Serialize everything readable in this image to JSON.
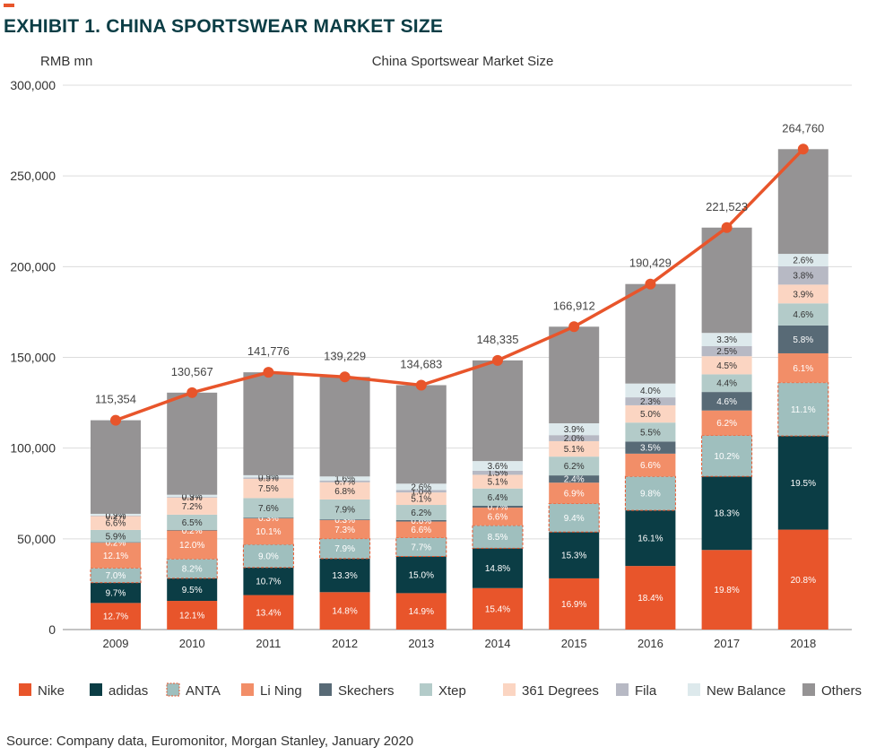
{
  "header": {
    "title": "EXHIBIT 1. CHINA SPORTSWEAR MARKET SIZE",
    "source": "Source: Company data, Euromonitor, Morgan Stanley, January 2020"
  },
  "chart_data": {
    "type": "bar",
    "stacked": true,
    "title": "China Sportswear Market Size",
    "ylabel": "RMB mn",
    "xlabel": "",
    "ylim": [
      0,
      300000
    ],
    "yticks": [
      0,
      50000,
      100000,
      150000,
      200000,
      250000,
      300000
    ],
    "ytick_labels": [
      "0",
      "50,000",
      "100,000",
      "150,000",
      "200,000",
      "250,000",
      "300,000"
    ],
    "grid": true,
    "legend_position": "bottom",
    "categories": [
      "2009",
      "2010",
      "2011",
      "2012",
      "2013",
      "2014",
      "2015",
      "2016",
      "2017",
      "2018"
    ],
    "totals": [
      115354,
      130567,
      141776,
      139229,
      134683,
      148335,
      166912,
      190429,
      221523,
      264760
    ],
    "total_labels": [
      "115,354",
      "130,567",
      "141,776",
      "139,229",
      "134,683",
      "148,335",
      "166,912",
      "190,429",
      "221,523",
      "264,760"
    ],
    "line_series": {
      "values": [
        115354,
        130567,
        141776,
        139229,
        134683,
        148335,
        166912,
        190429,
        221523,
        264760
      ],
      "color": "#e8552b"
    },
    "series": [
      {
        "name": "Nike",
        "color": "#e8552b",
        "text_color": "#ffffff",
        "shares": [
          12.7,
          12.1,
          13.4,
          14.8,
          14.9,
          15.4,
          16.9,
          18.4,
          19.8,
          20.8
        ],
        "labels": [
          "12.7%",
          "12.1%",
          "13.4%",
          "14.8%",
          "14.9%",
          "15.4%",
          "16.9%",
          "18.4%",
          "19.8%",
          "20.8%"
        ]
      },
      {
        "name": "adidas",
        "color": "#0b3d45",
        "text_color": "#ffffff",
        "shares": [
          9.7,
          9.5,
          10.7,
          13.3,
          15.0,
          14.8,
          15.3,
          16.1,
          18.3,
          19.5
        ],
        "labels": [
          "9.7%",
          "9.5%",
          "10.7%",
          "13.3%",
          "15.0%",
          "14.8%",
          "15.3%",
          "16.1%",
          "18.3%",
          "19.5%"
        ]
      },
      {
        "name": "ANTA",
        "color": "#9fbfbe",
        "text_color": "#ffffff",
        "dashed_border": "#e8552b",
        "shares": [
          7.0,
          8.2,
          9.0,
          7.9,
          7.7,
          8.5,
          9.4,
          9.8,
          10.2,
          11.1
        ],
        "labels": [
          "7.0%",
          "8.2%",
          "9.0%",
          "7.9%",
          "7.7%",
          "8.5%",
          "9.4%",
          "9.8%",
          "10.2%",
          "11.1%"
        ]
      },
      {
        "name": "Li Ning",
        "color": "#f28e68",
        "text_color": "#ffffff",
        "shares": [
          12.1,
          12.0,
          10.1,
          7.3,
          6.6,
          6.6,
          6.9,
          6.6,
          6.2,
          6.1
        ],
        "labels": [
          "12.1%",
          "12.0%",
          "10.1%",
          "7.3%",
          "6.6%",
          "6.6%",
          "6.9%",
          "6.6%",
          "6.2%",
          "6.1%"
        ]
      },
      {
        "name": "Skechers",
        "color": "#586a76",
        "text_color": "#ffffff",
        "shares": [
          0.2,
          0.2,
          0.3,
          0.3,
          0.6,
          0.7,
          2.4,
          3.5,
          4.6,
          5.8
        ],
        "labels": [
          "0.2%",
          "0.2%",
          "0.3%",
          "0.3%",
          "0.6%",
          "0.7%",
          "2.4%",
          "3.5%",
          "4.6%",
          "5.8%"
        ]
      },
      {
        "name": "Xtep",
        "color": "#b3cbc9",
        "text_color": "#333333",
        "shares": [
          5.9,
          6.5,
          7.6,
          7.9,
          6.2,
          6.4,
          6.2,
          5.5,
          4.4,
          4.6
        ],
        "labels": [
          "5.9%",
          "6.5%",
          "7.6%",
          "7.9%",
          "6.2%",
          "6.4%",
          "6.2%",
          "5.5%",
          "4.4%",
          "4.6%"
        ]
      },
      {
        "name": "361 Degrees",
        "color": "#fbd5c2",
        "text_color": "#333333",
        "shares": [
          6.6,
          7.2,
          7.5,
          6.8,
          5.1,
          5.1,
          5.1,
          5.0,
          4.5,
          3.9
        ],
        "labels": [
          "6.6%",
          "7.2%",
          "7.5%",
          "6.8%",
          "5.1%",
          "5.1%",
          "5.1%",
          "5.0%",
          "4.5%",
          "3.9%"
        ]
      },
      {
        "name": "Fila",
        "color": "#b7b9c4",
        "text_color": "#333333",
        "shares": [
          0.2,
          0.3,
          0.5,
          0.7,
          1.0,
          1.5,
          2.0,
          2.3,
          2.5,
          3.8
        ],
        "labels": [
          "0.2%",
          "0.3%",
          "0.5%",
          "0.7%",
          "1.0%",
          "1.5%",
          "2.0%",
          "2.3%",
          "2.5%",
          "3.8%"
        ]
      },
      {
        "name": "New Balance",
        "color": "#dde9ec",
        "text_color": "#333333",
        "shares": [
          0.9,
          0.9,
          0.9,
          1.6,
          2.6,
          3.6,
          3.9,
          4.0,
          3.3,
          2.6
        ],
        "labels": [
          "0.9%",
          "0.9%",
          "0.9%",
          "1.6%",
          "2.6%",
          "3.6%",
          "3.9%",
          "4.0%",
          "3.3%",
          "2.6%"
        ]
      },
      {
        "name": "Others",
        "color": "#959394",
        "text_color": "#ffffff",
        "shares": [],
        "labels": []
      }
    ]
  }
}
